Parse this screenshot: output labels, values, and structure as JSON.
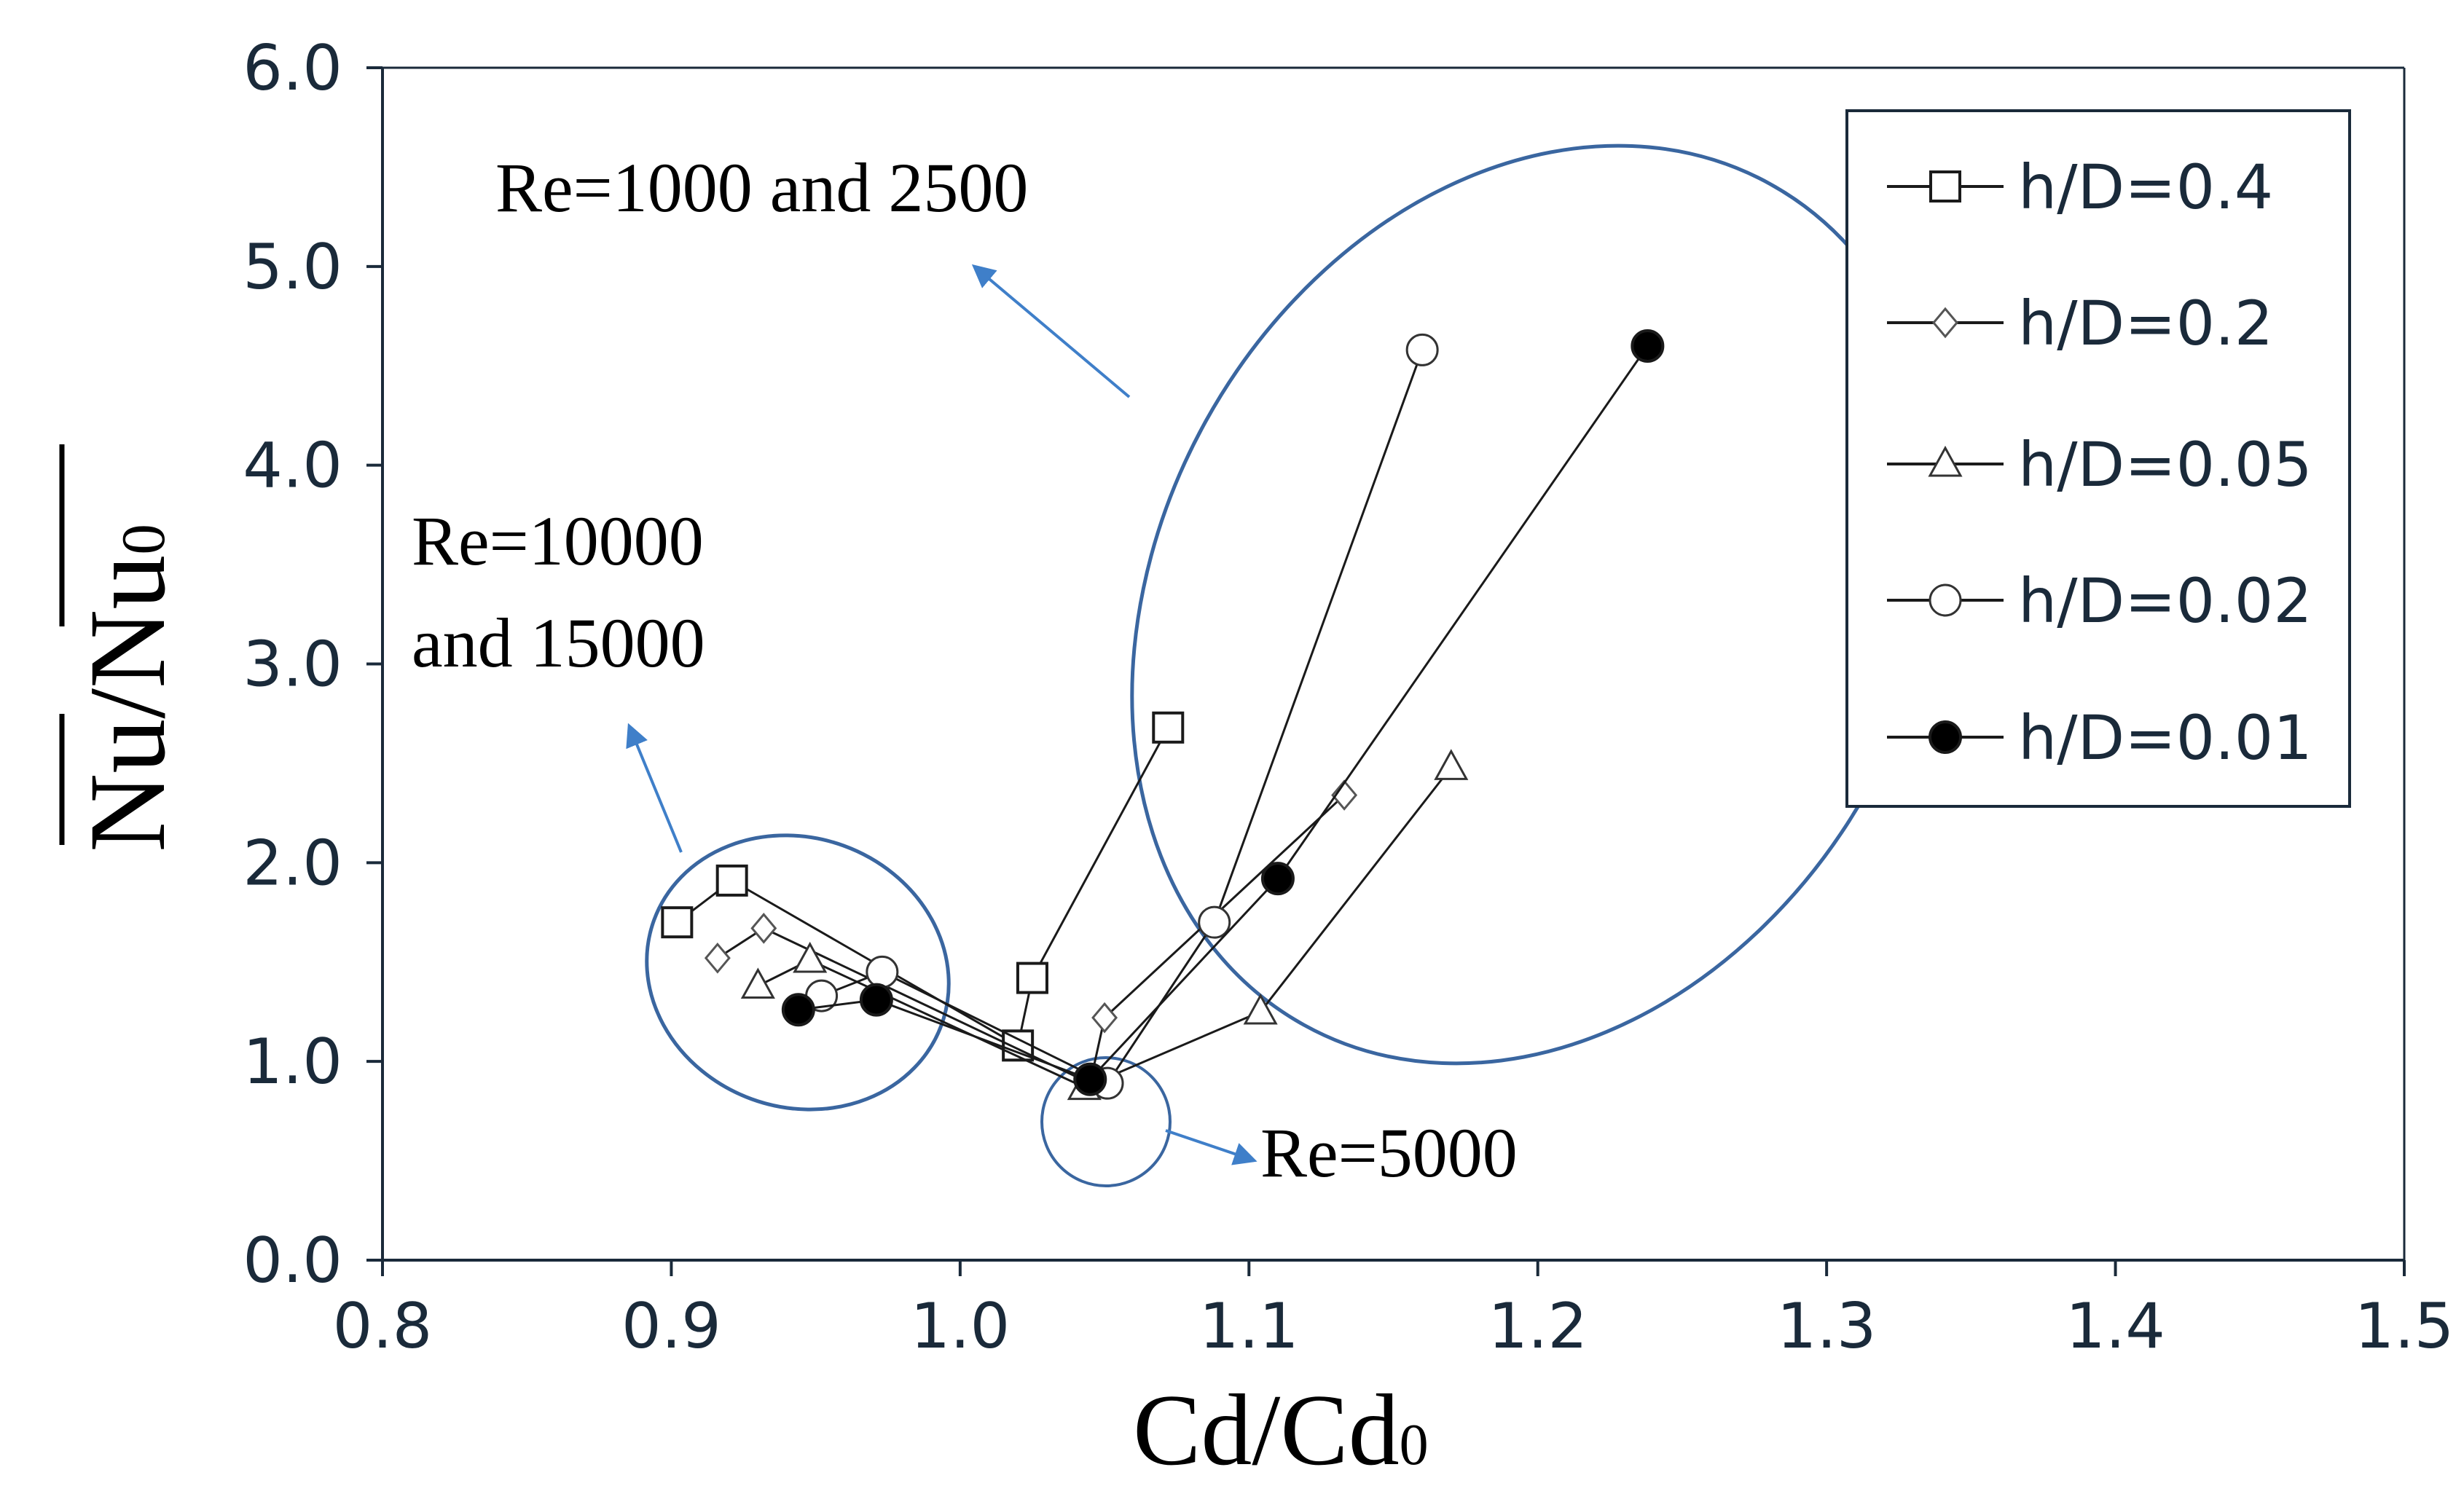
{
  "chart_data": {
    "type": "scatter",
    "title": "",
    "xlabel": "Cd/Cd₀",
    "xlabel_main": "Cd/Cd",
    "xlabel_sub": "0",
    "ylabel": "Nu/Nu₀",
    "ylabel_main": "Nu/Nu",
    "ylabel_sub": "0",
    "xlim": [
      0.8,
      1.5
    ],
    "ylim": [
      0.0,
      6.0
    ],
    "xticks": [
      0.8,
      0.9,
      1.0,
      1.1,
      1.2,
      1.3,
      1.4,
      1.5
    ],
    "yticks": [
      0.0,
      1.0,
      2.0,
      3.0,
      4.0,
      5.0,
      6.0
    ],
    "xtick_labels": [
      "0.8",
      "0.9",
      "1.0",
      "1.1",
      "1.2",
      "1.3",
      "1.4",
      "1.5"
    ],
    "ytick_labels": [
      "0.0",
      "1.0",
      "2.0",
      "3.0",
      "4.0",
      "5.0",
      "6.0"
    ],
    "grid": false,
    "legend_position": "top-right",
    "series": [
      {
        "name": "h/D=0.4",
        "marker": "square",
        "x": [
          0.902,
          0.921,
          1.02,
          1.025,
          1.072
        ],
        "y": [
          1.7,
          1.91,
          1.08,
          1.42,
          2.68
        ]
      },
      {
        "name": "h/D=0.2",
        "marker": "diamond",
        "x": [
          0.916,
          0.932,
          1.045,
          1.05,
          1.133
        ],
        "y": [
          1.52,
          1.67,
          0.89,
          1.22,
          2.34
        ]
      },
      {
        "name": "h/D=0.05",
        "marker": "triangle",
        "x": [
          0.93,
          0.948,
          1.043,
          1.104,
          1.17
        ],
        "y": [
          1.38,
          1.51,
          0.87,
          1.25,
          2.48
        ]
      },
      {
        "name": "h/D=0.02",
        "marker": "circle-open",
        "x": [
          0.952,
          0.973,
          1.051,
          1.088,
          1.16
        ],
        "y": [
          1.33,
          1.45,
          0.89,
          1.7,
          4.58
        ]
      },
      {
        "name": "h/D=0.01",
        "marker": "circle-filled",
        "x": [
          0.944,
          0.971,
          1.045,
          1.11,
          1.238
        ],
        "y": [
          1.26,
          1.31,
          0.91,
          1.92,
          4.6
        ]
      }
    ],
    "annotations": [
      {
        "text": "Re=1000 and 2500"
      },
      {
        "text": "Re=10000"
      },
      {
        "text": "and 15000"
      },
      {
        "text": "Re=5000"
      }
    ],
    "colors": {
      "ellipse": "#3a66a0",
      "arrow": "#3f7fc9",
      "axis": "#1a2a3a"
    }
  }
}
